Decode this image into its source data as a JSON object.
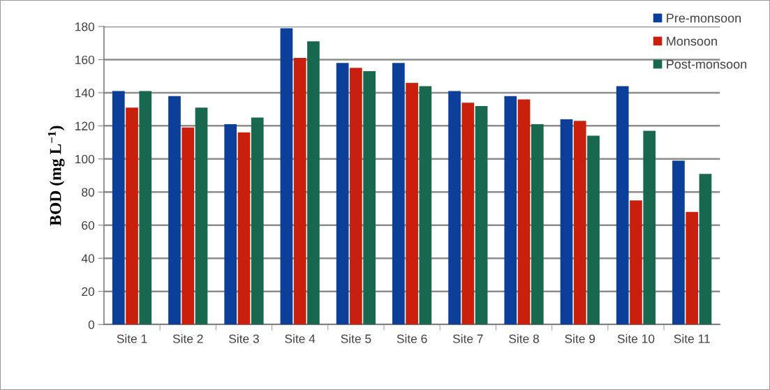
{
  "chart_data": {
    "type": "bar",
    "ylabel": "BOD (mg L$^{−1}$)",
    "categories": [
      "Site 1",
      "Site 2",
      "Site 3",
      "Site 4",
      "Site 5",
      "Site 6",
      "Site 7",
      "Site 8",
      "Site 9",
      "Site 10",
      "Site 11"
    ],
    "series": [
      {
        "name": "Pre-monsoon",
        "color": "#0b3f9a",
        "values": [
          141,
          138,
          121,
          179,
          158,
          158,
          141,
          138,
          124,
          144,
          99
        ]
      },
      {
        "name": "Monsoon",
        "color": "#c8200c",
        "values": [
          131,
          119,
          116,
          161,
          155,
          146,
          134,
          136,
          123,
          75,
          68
        ]
      },
      {
        "name": "Post-monsoon",
        "color": "#17684f",
        "values": [
          141,
          131,
          125,
          171,
          153,
          144,
          132,
          121,
          114,
          117,
          91
        ]
      }
    ],
    "ylim": [
      0,
      180
    ],
    "yticks": [
      0,
      20,
      40,
      60,
      80,
      100,
      120,
      140,
      160,
      180
    ],
    "grid": "y",
    "legend": "top right"
  }
}
